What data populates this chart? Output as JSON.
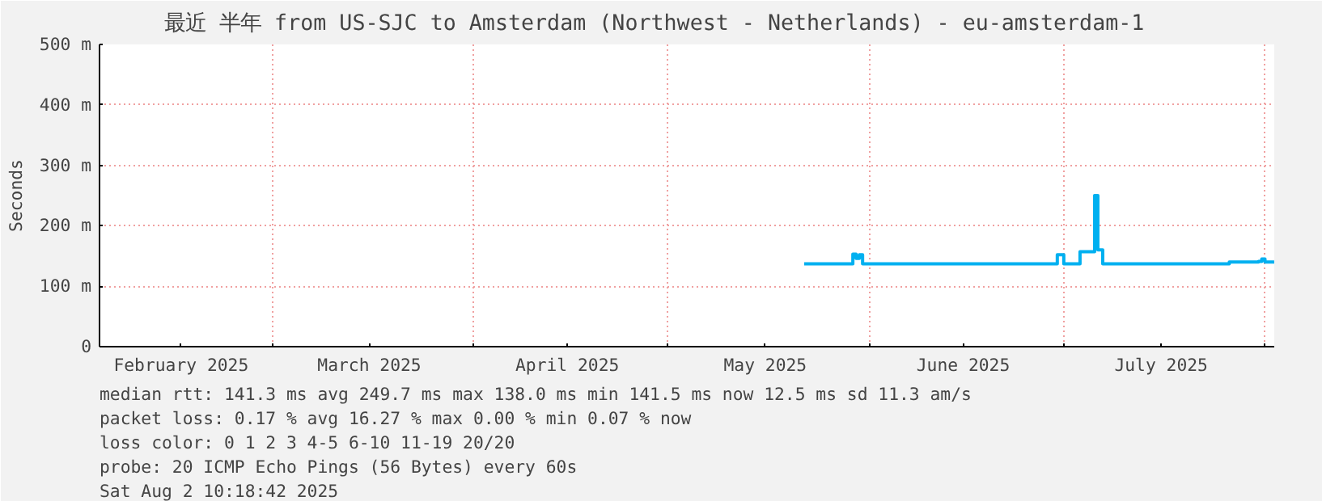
{
  "chart_data": {
    "type": "step",
    "title": "最近 半年 from US-SJC to Amsterdam (Northwest - Netherlands) - eu-amsterdam-1",
    "ylabel": "Seconds",
    "xlim": [
      "2025-02-02T10:18",
      "2025-08-02T10:18"
    ],
    "xticks": [
      {
        "value": "2025-02-15",
        "label": "February 2025"
      },
      {
        "value": "2025-03-01",
        "label": null
      },
      {
        "value": "2025-03-16",
        "label": "March 2025"
      },
      {
        "value": "2025-04-01",
        "label": null
      },
      {
        "value": "2025-04-15T12:00",
        "label": "April 2025"
      },
      {
        "value": "2025-05-01",
        "label": null
      },
      {
        "value": "2025-05-16",
        "label": "May 2025"
      },
      {
        "value": "2025-06-01",
        "label": null
      },
      {
        "value": "2025-06-15T12:00",
        "label": "June 2025"
      },
      {
        "value": "2025-07-01",
        "label": null
      },
      {
        "value": "2025-07-16",
        "label": "July 2025"
      },
      {
        "value": "2025-08-01",
        "label": null
      }
    ],
    "ylim": [
      0,
      500
    ],
    "yticks": [
      0,
      {
        "value": 100,
        "label": "100 m"
      },
      {
        "value": 200,
        "label": "200 m"
      },
      {
        "value": 300,
        "label": "300 m"
      },
      {
        "value": 400,
        "label": "400 m"
      },
      {
        "value": 500,
        "label": "500 m"
      }
    ],
    "grid": true,
    "series": [
      {
        "x": [
          "2025-05-22",
          "2025-05-29",
          "2025-05-29T12:00",
          "2025-05-30",
          "2025-05-30T12:00",
          "2025-05-31",
          "2025-06-10",
          "2025-06-20",
          "2025-06-29T18:00",
          "2025-06-30",
          "2025-07-01",
          "2025-07-03",
          "2025-07-03T12:00",
          "2025-07-05",
          "2025-07-05T18:00",
          "2025-07-06T06:00",
          "2025-07-07",
          "2025-07-15",
          "2025-07-26T12:00",
          "2025-07-31",
          "2025-07-31T12:00",
          "2025-08-01",
          "2025-08-02T10:00"
        ],
        "values": [
          137,
          137,
          153,
          146,
          152,
          137,
          137,
          137,
          137,
          152,
          137,
          137,
          157,
          157,
          250,
          160,
          137,
          137,
          140,
          141,
          145,
          140,
          141
        ],
        "color": "#00b0f0"
      }
    ],
    "annotations": [
      "median rtt:  141.3 ms avg  249.7 ms max  138.0 ms min  141.5 ms now  12.5 ms sd  11.3   am/s",
      "packet loss: 0.17 % avg  16.27 % max  0.00 % min  0.07 % now",
      "loss color:  0  1  2  3  4-5  6-10  11-19  20/20",
      "probe:        20 ICMP Echo Pings (56 Bytes) every 60s",
      "Sat Aug  2 10:18:42 2025"
    ]
  }
}
